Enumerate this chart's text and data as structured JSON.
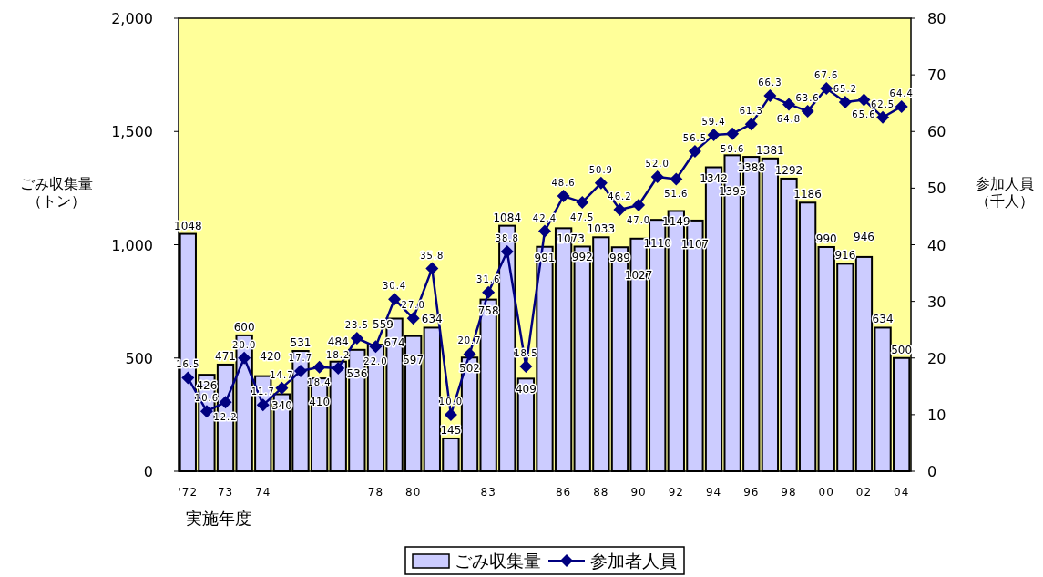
{
  "chart_data": {
    "type": "bar",
    "xlabel": "実施年度",
    "ylabel": "ごみ収集量（トン）",
    "y2label": "参加人員（千人）",
    "categories": [
      "'72",
      null,
      "73",
      null,
      "74",
      null,
      null,
      null,
      null,
      null,
      "78",
      null,
      "80",
      null,
      null,
      null,
      "83",
      null,
      null,
      null,
      "86",
      null,
      "88",
      null,
      "90",
      null,
      "92",
      null,
      "94",
      null,
      "96",
      null,
      "98",
      null,
      "00",
      null,
      "02",
      null,
      "04"
    ],
    "series": [
      {
        "name": "ごみ収集量",
        "color": "#ccccff",
        "values": [
          1048,
          426,
          471,
          600,
          420,
          340,
          531,
          410,
          484,
          536,
          559,
          674,
          597,
          634,
          145,
          502,
          758,
          1084,
          409,
          991,
          1073,
          992,
          1033,
          989,
          1027,
          1110,
          1149,
          1107,
          1342,
          1395,
          1388,
          1381,
          1292,
          1186,
          990,
          916,
          946,
          634,
          500
        ]
      },
      {
        "name": "参加者人員",
        "type": "line",
        "axis": "y2",
        "color": "#000080",
        "marker": "diamond",
        "values": [
          16.5,
          10.6,
          12.2,
          20.0,
          11.7,
          14.7,
          17.7,
          18.4,
          18.2,
          23.5,
          22.0,
          30.4,
          27.0,
          35.8,
          10.0,
          20.7,
          31.6,
          38.8,
          18.5,
          42.4,
          48.6,
          47.5,
          50.9,
          46.2,
          47.0,
          52.0,
          51.6,
          56.5,
          59.4,
          59.6,
          61.3,
          66.3,
          64.8,
          63.6,
          67.6,
          65.2,
          65.6,
          62.5,
          64.4
        ],
        "value_labels": [
          "16.5",
          "10.6",
          "12.2",
          "20.0",
          "11.7",
          "14.7",
          "17.7",
          "18.4",
          "18.2",
          "23.5",
          "22.0",
          "30.4",
          "27.0",
          "35.8",
          "10.0",
          "20.7",
          "31.6",
          "38.8",
          "18.5",
          "42.4",
          "48.6",
          "47.5",
          "50.9",
          "46.2",
          "47.0",
          "52.0",
          "51.6",
          "56.5",
          "59.4",
          "59.6",
          "61.3",
          "66.3",
          "64.8",
          "63.6",
          "67.6",
          "65.2",
          "65.6",
          "62.5",
          "64.4"
        ]
      }
    ],
    "ylim": [
      0,
      2000
    ],
    "yticks": [
      0,
      500,
      {
        "value": 1000,
        "label": "1,000"
      },
      {
        "value": 1500,
        "label": "1,500"
      },
      {
        "value": 2000,
        "label": "2,000"
      }
    ],
    "y2lim": [
      0,
      80
    ],
    "y2ticks": [
      0,
      10,
      20,
      30,
      40,
      50,
      60,
      70,
      80
    ],
    "data_labels": true,
    "legend": "bottom",
    "grid": false
  }
}
